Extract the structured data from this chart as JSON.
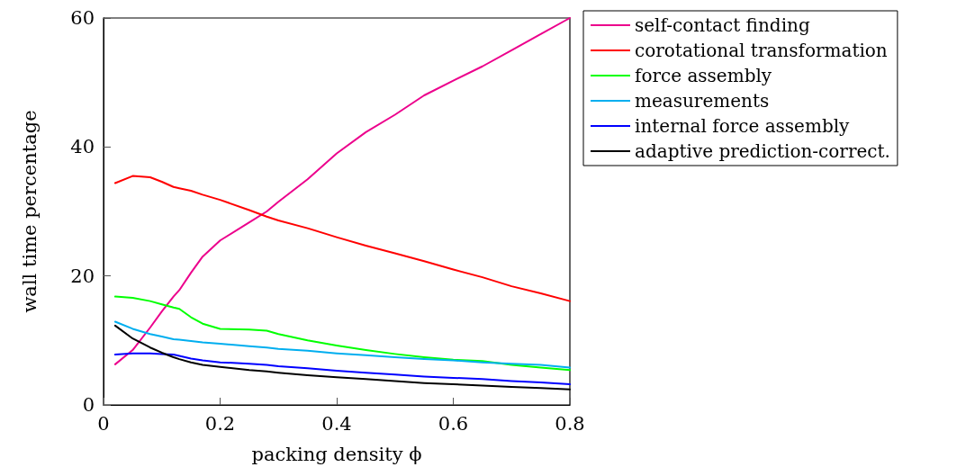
{
  "chart_data": {
    "type": "line",
    "xlabel": "packing density ϕ",
    "ylabel": "wall time percentage",
    "x": [
      0.02,
      0.05,
      0.08,
      0.1,
      0.12,
      0.13,
      0.15,
      0.17,
      0.2,
      0.25,
      0.28,
      0.3,
      0.35,
      0.4,
      0.45,
      0.5,
      0.55,
      0.6,
      0.65,
      0.7,
      0.75,
      0.8
    ],
    "xlim": [
      0,
      0.8
    ],
    "xticks": [
      0,
      0.2,
      0.4,
      0.6,
      0.8
    ],
    "ylim": [
      0,
      60
    ],
    "yticks": [
      0,
      20,
      40,
      60
    ],
    "grid": false,
    "legend": "right",
    "marker": "none",
    "line_style": "solid",
    "series": [
      {
        "name": "self-contact finding",
        "color": "#ec008c",
        "values": [
          6.3,
          8.5,
          12,
          14.5,
          16.8,
          17.8,
          20.5,
          23,
          25.5,
          28.3,
          30,
          31.5,
          35,
          39,
          42.3,
          45,
          48,
          50.3,
          52.5,
          55,
          57.5,
          60
        ]
      },
      {
        "name": "corotational transformation",
        "color": "#ff0000",
        "values": [
          34.4,
          35.5,
          35.3,
          34.6,
          33.8,
          33.6,
          33.2,
          32.6,
          31.8,
          30.2,
          29.2,
          28.6,
          27.4,
          26,
          24.7,
          23.5,
          22.3,
          21,
          19.8,
          18.4,
          17.3,
          16.1
        ]
      },
      {
        "name": "force assembly",
        "color": "#00ff00",
        "values": [
          16.8,
          16.6,
          16.1,
          15.6,
          15.1,
          14.9,
          13.6,
          12.6,
          11.8,
          11.7,
          11.5,
          11.0,
          10.0,
          9.2,
          8.5,
          7.9,
          7.4,
          7.0,
          6.8,
          6.2,
          5.8,
          5.4
        ]
      },
      {
        "name": "measurements",
        "color": "#00aeef",
        "values": [
          12.9,
          11.8,
          11.0,
          10.6,
          10.2,
          10.1,
          9.9,
          9.7,
          9.5,
          9.1,
          8.9,
          8.7,
          8.4,
          8.0,
          7.7,
          7.4,
          7.1,
          6.9,
          6.6,
          6.4,
          6.2,
          5.8
        ]
      },
      {
        "name": "internal force assembly",
        "color": "#0000ff",
        "values": [
          7.8,
          8.0,
          8.0,
          7.9,
          7.8,
          7.6,
          7.2,
          6.9,
          6.6,
          6.4,
          6.2,
          6.0,
          5.7,
          5.3,
          5.0,
          4.7,
          4.4,
          4.2,
          4.0,
          3.7,
          3.5,
          3.2
        ]
      },
      {
        "name": "adaptive prediction-correct.",
        "color": "#000000",
        "values": [
          12.3,
          10.3,
          8.9,
          8.1,
          7.4,
          7.1,
          6.6,
          6.2,
          5.9,
          5.4,
          5.2,
          5.0,
          4.6,
          4.3,
          4.0,
          3.7,
          3.4,
          3.2,
          3.0,
          2.8,
          2.6,
          2.4
        ]
      }
    ]
  }
}
